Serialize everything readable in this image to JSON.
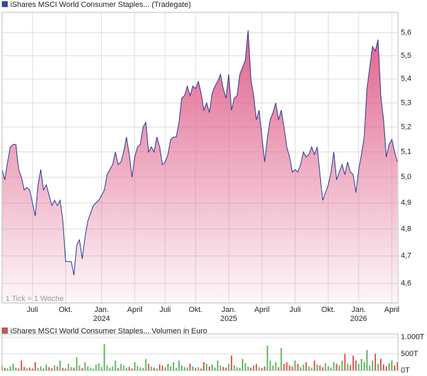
{
  "chart_data": [
    {
      "type": "area",
      "title": "iShares MSCI World Consumer Staples... (Tradegate)",
      "annotation": "1 Tick = 1 Woche",
      "legend_color": "#2a4aa8",
      "line_color": "#24348f",
      "fill_color": "#e0638c",
      "log_scale": true,
      "grid": true,
      "ylim": [
        4.53,
        5.69
      ],
      "yticks": [
        {
          "value": 4.6,
          "label": "4,6"
        },
        {
          "value": 4.7,
          "label": "4,7"
        },
        {
          "value": 4.8,
          "label": "4,8"
        },
        {
          "value": 4.9,
          "label": "4,9"
        },
        {
          "value": 5.0,
          "label": "5,0"
        },
        {
          "value": 5.1,
          "label": "5,1"
        },
        {
          "value": 5.2,
          "label": "5,2"
        },
        {
          "value": 5.3,
          "label": "5,3"
        },
        {
          "value": 5.4,
          "label": "5,4"
        },
        {
          "value": 5.5,
          "label": "5,5"
        },
        {
          "value": 5.6,
          "label": "5,6"
        }
      ],
      "categories": [
        null,
        null,
        null,
        null,
        null,
        null,
        null,
        null,
        null,
        null,
        null,
        "Juli",
        null,
        null,
        null,
        null,
        null,
        null,
        null,
        null,
        null,
        null,
        null,
        "Okt.",
        null,
        null,
        null,
        null,
        null,
        null,
        null,
        null,
        null,
        null,
        null,
        null,
        "Jan.",
        null,
        null,
        null,
        null,
        null,
        null,
        null,
        null,
        null,
        null,
        null,
        "April",
        null,
        null,
        null,
        null,
        null,
        null,
        null,
        null,
        null,
        null,
        "Juli",
        null,
        null,
        null,
        null,
        null,
        null,
        null,
        null,
        null,
        null,
        "Okt.",
        null,
        null,
        null,
        null,
        null,
        null,
        null,
        null,
        null,
        null,
        null,
        "Jan.",
        null,
        null,
        null,
        null,
        null,
        null,
        null,
        null,
        null,
        null,
        null,
        "April",
        null,
        null,
        null,
        null,
        null,
        null,
        null,
        null,
        null,
        null,
        null,
        "Juli",
        null,
        null,
        null,
        null,
        null,
        null,
        null,
        null,
        null,
        null,
        null,
        "Okt.",
        null,
        null,
        null,
        null,
        null,
        null,
        null,
        null,
        null,
        null,
        "Jan.",
        null,
        null,
        null,
        null,
        null,
        null,
        null,
        null,
        null,
        null,
        null,
        "April",
        null,
        null
      ],
      "category_years": [
        null,
        null,
        null,
        null,
        null,
        null,
        null,
        null,
        null,
        null,
        null,
        null,
        null,
        null,
        null,
        null,
        null,
        null,
        null,
        null,
        null,
        null,
        null,
        null,
        null,
        null,
        null,
        null,
        null,
        null,
        null,
        null,
        null,
        null,
        null,
        null,
        "2024",
        null,
        null,
        null,
        null,
        null,
        null,
        null,
        null,
        null,
        null,
        null,
        null,
        null,
        null,
        null,
        null,
        null,
        null,
        null,
        null,
        null,
        null,
        null,
        null,
        null,
        null,
        null,
        null,
        null,
        null,
        null,
        null,
        null,
        null,
        null,
        null,
        null,
        null,
        null,
        null,
        null,
        null,
        null,
        null,
        null,
        "2025",
        null,
        null,
        null,
        null,
        null,
        null,
        null,
        null,
        null,
        null,
        null,
        null,
        null,
        null,
        null,
        null,
        null,
        null,
        null,
        null,
        null,
        null,
        null,
        null,
        null,
        null,
        null,
        null,
        null,
        null,
        null,
        null,
        null,
        null,
        null,
        null,
        null,
        null,
        null,
        null,
        null,
        null,
        null,
        null,
        null,
        null,
        "2026",
        null,
        null,
        null,
        null,
        null,
        null,
        null,
        null,
        null,
        null,
        null,
        null,
        null,
        null
      ],
      "values": [
        5.03,
        4.99,
        5.06,
        5.12,
        5.13,
        5.13,
        5.03,
        5.0,
        4.95,
        4.96,
        4.95,
        4.9,
        4.85,
        4.97,
        5.03,
        4.95,
        4.97,
        4.93,
        4.89,
        4.91,
        4.89,
        4.91,
        4.83,
        4.68,
        4.68,
        4.68,
        4.63,
        4.74,
        4.76,
        4.69,
        4.77,
        4.83,
        4.86,
        4.89,
        4.9,
        4.91,
        4.93,
        4.95,
        5.01,
        5.03,
        5.05,
        5.1,
        5.05,
        5.06,
        5.1,
        5.16,
        5.09,
        5.0,
        5.08,
        5.12,
        5.13,
        5.2,
        5.22,
        5.1,
        5.12,
        5.1,
        5.16,
        5.12,
        5.05,
        5.06,
        5.09,
        5.15,
        5.16,
        5.16,
        5.22,
        5.32,
        5.33,
        5.37,
        5.33,
        5.37,
        5.36,
        5.39,
        5.34,
        5.27,
        5.3,
        5.26,
        5.34,
        5.37,
        5.39,
        5.42,
        5.36,
        5.32,
        5.42,
        5.27,
        5.32,
        5.33,
        5.42,
        5.45,
        5.48,
        5.61,
        5.4,
        5.33,
        5.23,
        5.27,
        5.16,
        5.06,
        5.16,
        5.23,
        5.26,
        5.3,
        5.23,
        5.27,
        5.2,
        5.12,
        5.08,
        5.02,
        5.03,
        5.02,
        5.05,
        5.1,
        5.08,
        5.09,
        5.12,
        5.09,
        5.12,
        5.01,
        4.91,
        4.94,
        4.97,
        5.02,
        5.1,
        4.99,
        5.02,
        5.05,
        5.01,
        5.06,
        5.02,
        5.01,
        4.94,
        5.03,
        5.09,
        5.16,
        5.36,
        5.45,
        5.54,
        5.52,
        5.57,
        5.33,
        5.23,
        5.08,
        5.13,
        5.15,
        5.1,
        5.06
      ]
    },
    {
      "type": "bar",
      "title": "iShares MSCI World Consumer Staples... Volumen in Euro",
      "legend_color": "#d9534f",
      "up_color": "#5cb85c",
      "down_color": "#d9534f",
      "ylim": [
        0,
        1100
      ],
      "yticks": [
        {
          "value": 0,
          "label": "0T"
        },
        {
          "value": 500,
          "label": "500T"
        },
        {
          "value": 1000,
          "label": "1.000T"
        }
      ],
      "values": [
        150,
        80,
        60,
        120,
        200,
        90,
        60,
        300,
        110,
        70,
        90,
        60,
        250,
        80,
        120,
        60,
        180,
        100,
        70,
        150,
        120,
        300,
        80,
        60,
        200,
        100,
        90,
        400,
        150,
        80,
        250,
        120,
        90,
        60,
        180,
        220,
        100,
        800,
        150,
        90,
        120,
        300,
        80,
        200,
        150,
        90,
        110,
        60,
        250,
        130,
        100,
        80,
        350,
        200,
        120,
        90,
        60,
        180,
        150,
        100,
        200,
        120,
        250,
        80,
        300,
        150,
        100,
        90,
        200,
        120,
        80,
        100,
        60,
        250,
        200,
        120,
        180,
        90,
        300,
        150,
        110,
        90,
        200,
        450,
        150,
        100,
        80,
        350,
        220,
        120,
        90,
        150,
        200,
        100,
        80,
        120,
        750,
        300,
        150,
        250,
        100,
        680,
        200,
        250,
        150,
        120,
        300,
        200,
        100,
        180,
        250,
        120,
        90,
        300,
        180,
        150,
        100,
        220,
        130,
        90,
        250,
        200,
        150,
        300,
        500,
        200,
        160,
        450,
        300,
        200,
        350,
        250,
        620,
        150,
        300,
        500,
        200,
        350,
        180,
        120,
        220,
        300,
        150,
        250
      ]
    }
  ]
}
